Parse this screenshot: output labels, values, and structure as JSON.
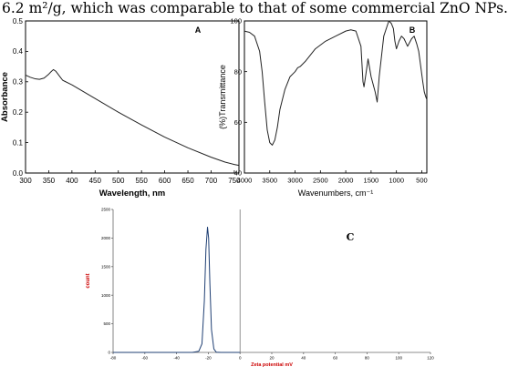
{
  "caption": "6.2 m²/g, which was comparable to that of some commercial ZnO NPs.",
  "chart_data": [
    {
      "type": "line",
      "panel_label": "A",
      "xlabel": "Wavelength, nm",
      "ylabel": "Absorbance",
      "xlim": [
        300,
        760
      ],
      "ylim": [
        0,
        0.5
      ],
      "xticks": [
        "300",
        "350",
        "400",
        "450",
        "500",
        "550",
        "600",
        "650",
        "700",
        "750"
      ],
      "yticks": [
        "0.0",
        "0.1",
        "0.2",
        "0.3",
        "0.4",
        "0.5"
      ],
      "x": [
        300,
        310,
        320,
        330,
        340,
        350,
        355,
        360,
        365,
        370,
        375,
        380,
        400,
        450,
        500,
        550,
        600,
        650,
        700,
        730,
        750,
        760
      ],
      "y": [
        0.322,
        0.315,
        0.31,
        0.308,
        0.312,
        0.325,
        0.333,
        0.34,
        0.335,
        0.325,
        0.315,
        0.305,
        0.29,
        0.245,
        0.2,
        0.158,
        0.118,
        0.083,
        0.052,
        0.036,
        0.028,
        0.025
      ],
      "color": "#222222"
    },
    {
      "type": "line",
      "panel_label": "B",
      "xlabel": "Wavenumbers, cm⁻¹",
      "ylabel": "(%)Transmittance",
      "xlim": [
        4000,
        400
      ],
      "ylim": [
        40,
        100
      ],
      "xticks": [
        "4000",
        "3500",
        "3000",
        "2500",
        "2000",
        "1500",
        "1000",
        "500"
      ],
      "yticks": [
        "40",
        "60",
        "80",
        "100"
      ],
      "x": [
        4000,
        3900,
        3800,
        3700,
        3650,
        3600,
        3550,
        3500,
        3450,
        3400,
        3350,
        3300,
        3200,
        3100,
        3000,
        2950,
        2900,
        2800,
        2600,
        2400,
        2200,
        2000,
        1900,
        1800,
        1700,
        1660,
        1640,
        1610,
        1560,
        1500,
        1420,
        1380,
        1340,
        1250,
        1150,
        1100,
        1060,
        1030,
        1000,
        950,
        900,
        850,
        780,
        700,
        650,
        600,
        560,
        520,
        480,
        450,
        420,
        400
      ],
      "y": [
        96,
        95.5,
        94,
        88,
        80,
        68,
        57,
        52,
        51,
        53,
        58,
        65,
        73,
        78,
        80,
        81.5,
        82,
        84,
        89,
        92,
        94,
        96,
        96.5,
        96,
        90,
        76,
        74,
        78,
        85,
        78,
        72,
        68,
        78,
        94,
        100,
        99,
        97,
        92,
        89,
        92,
        94,
        93,
        90,
        93,
        94,
        91,
        88,
        82,
        76,
        72,
        70,
        69
      ],
      "color": "#222222"
    },
    {
      "type": "line",
      "panel_label": "C",
      "xlabel": "Zeta potential mV",
      "ylabel": "count",
      "xlim": [
        -80,
        120
      ],
      "ylim": [
        0,
        2500
      ],
      "xticks": [
        "-80",
        "-60",
        "-40",
        "-20",
        "0",
        "20",
        "40",
        "60",
        "80",
        "100",
        "120"
      ],
      "yticks": [
        "0",
        "500",
        "1000",
        "1500",
        "2000",
        "2500"
      ],
      "x": [
        -80,
        -30,
        -26,
        -24,
        -22.5,
        -21.5,
        -20.5,
        -19.8,
        -19,
        -18,
        -16.5,
        -15,
        -12,
        0
      ],
      "y": [
        0,
        0,
        20,
        150,
        900,
        1800,
        2190,
        2000,
        1200,
        400,
        60,
        5,
        0,
        0
      ],
      "vline_x": 0,
      "color": "#1f3f73",
      "vline_color": "#777777",
      "label_color": "#cc0000"
    }
  ]
}
